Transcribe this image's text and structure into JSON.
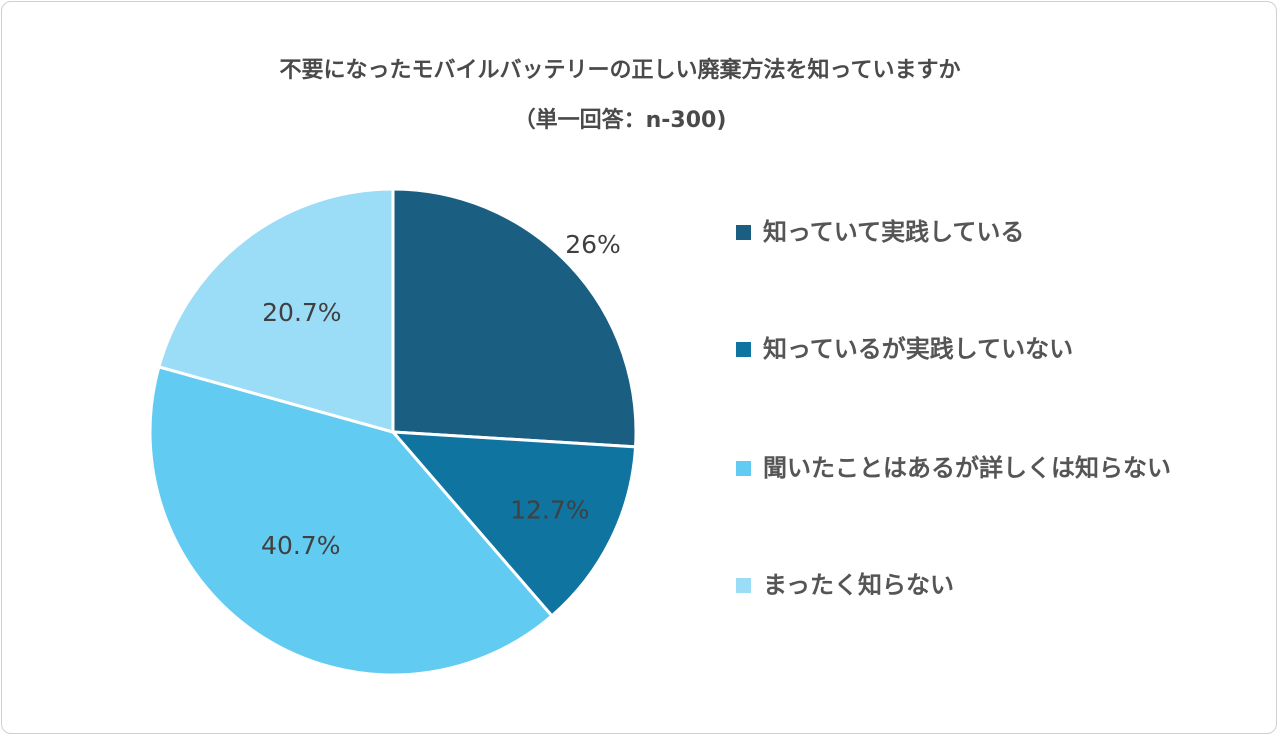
{
  "chart_data": {
    "type": "pie",
    "title": "不要になったモバイルバッテリーの正しい廃棄方法を知っていますか",
    "subtitle": "（単一回答：n-300)",
    "categories": [
      "知っていて実践している",
      "知っているが実践していない",
      "聞いたことはあるが詳しくは知らない",
      "まったく知らない"
    ],
    "values": [
      26,
      12.7,
      40.7,
      20.7
    ],
    "data_labels": [
      "26%",
      "12.7%",
      "40.7%",
      "20.7%"
    ],
    "colors": [
      "#1a5f82",
      "#0f74a0",
      "#62cbf2",
      "#9bdcf7"
    ],
    "start": "top, clockwise",
    "legend": "right"
  }
}
